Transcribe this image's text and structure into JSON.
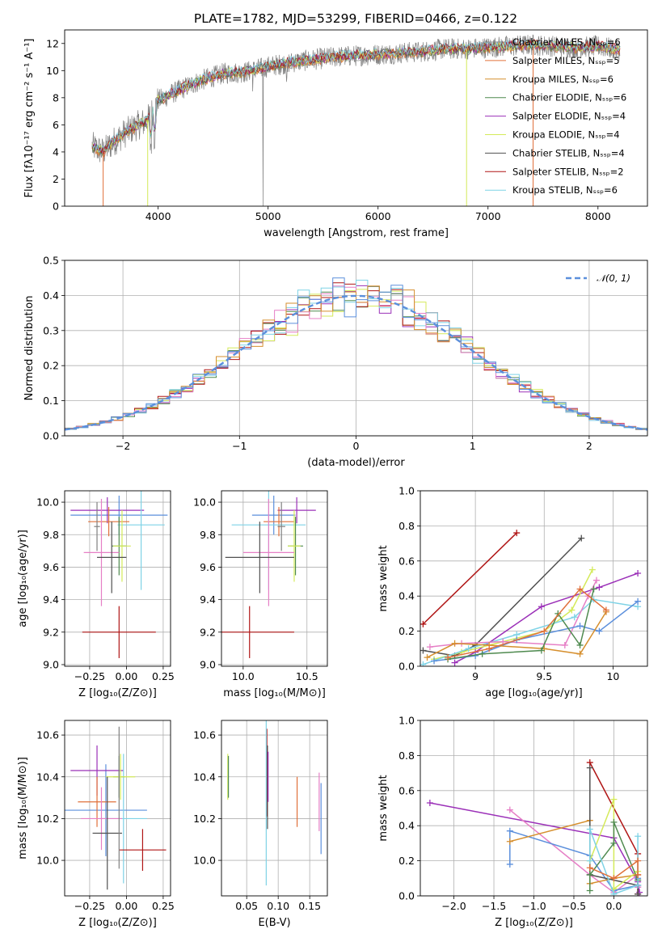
{
  "figure_title": "PLATE=1782, MJD=53299, FIBERID=0466, z=0.122",
  "colors": {
    "chabrier_miles": "#808080",
    "salpeter_miles": "#e0703a",
    "kroupa_miles": "#d68f2e",
    "chabrier_elodie": "#4f8a4f",
    "salpeter_elodie": "#9b30b8",
    "kroupa_elodie": "#d4ea5a",
    "chabrier_stelib": "#505050",
    "salpeter_stelib": "#b01515",
    "kroupa_stelib": "#7fd3e6",
    "blue_model": "#5b8fdc",
    "pink_model": "#e67fc6"
  },
  "chart_data": [
    {
      "id": "spectrum",
      "type": "line",
      "xlabel": "wavelength [Angstrom, rest frame]",
      "ylabel": "Flux [fλ10⁻¹⁷ erg cm⁻² s⁻¹ A⁻¹]",
      "xlim": [
        3150,
        8450
      ],
      "ylim": [
        0,
        13
      ],
      "xticks": [
        4000,
        5000,
        6000,
        7000,
        8000
      ],
      "yticks": [
        0,
        2,
        4,
        6,
        8,
        10,
        12
      ],
      "legend_position": "upper right",
      "legend": [
        "Chabrier MILES, Nₛₛₚ=6",
        "Salpeter MILES, Nₛₛₚ=5",
        "Kroupa MILES, Nₛₛₚ=6",
        "Chabrier ELODIE, Nₛₛₚ=6",
        "Salpeter ELODIE, Nₛₛₚ=4",
        "Kroupa ELODIE, Nₛₛₚ=4",
        "Chabrier STELIB, Nₛₛₚ=4",
        "Salpeter STELIB, Nₛₛₚ=2",
        "Kroupa STELIB, Nₛₛₚ=6"
      ],
      "continuum_x": [
        3400,
        3500,
        3600,
        3700,
        3800,
        3900,
        4000,
        4200,
        4400,
        4600,
        4800,
        5000,
        5200,
        5400,
        5600,
        5800,
        6000,
        6200,
        6400,
        6600,
        6800,
        7000,
        7200,
        7400,
        7600,
        7800,
        8000,
        8200
      ],
      "continuum_y": [
        4.4,
        4.0,
        4.8,
        5.4,
        5.9,
        6.3,
        7.8,
        8.6,
        9.3,
        9.8,
        9.9,
        10.3,
        10.6,
        10.8,
        11.0,
        11.1,
        11.2,
        11.3,
        11.4,
        11.6,
        11.6,
        11.7,
        11.8,
        11.9,
        11.8,
        11.7,
        11.8,
        11.5
      ]
    },
    {
      "id": "residuals",
      "type": "histogram",
      "xlabel": "(data-model)/error",
      "ylabel": "Normed distribution",
      "xlim": [
        -2.5,
        2.5
      ],
      "ylim": [
        0,
        0.5
      ],
      "xticks": [
        -2,
        -1,
        0,
        1,
        2
      ],
      "xtick_labels": [
        "−2",
        "−1",
        "0",
        "1",
        "2"
      ],
      "yticks": [
        0.0,
        0.1,
        0.2,
        0.3,
        0.4,
        0.5
      ],
      "legend": [
        "𝒩(0, 1)"
      ],
      "reference_curve": "gaussian mean 0 sigma 1",
      "bin_width": 0.1
    },
    {
      "id": "z_age",
      "type": "errorbar",
      "xlabel": "Z [log₁₀(Z/Z⊙)]",
      "ylabel": "age  [log₁₀(age/yr)]",
      "xlim": [
        -0.42,
        0.3
      ],
      "ylim": [
        8.99,
        10.07
      ],
      "xticks": [
        -0.25,
        0.0,
        0.25
      ],
      "xtick_labels": [
        "−0.25",
        "0.00",
        "0.25"
      ],
      "yticks": [
        9.0,
        9.2,
        9.4,
        9.6,
        9.8,
        10.0
      ],
      "points": [
        {
          "series": "blue",
          "x": -0.05,
          "xerr": 0.33,
          "y": 9.92,
          "yerr": 0.12
        },
        {
          "series": "purple",
          "x": -0.13,
          "xerr": 0.25,
          "y": 9.95,
          "yerr": 0.08
        },
        {
          "series": "orange",
          "x": -0.12,
          "xerr": 0.14,
          "y": 9.88,
          "yerr": 0.09
        },
        {
          "series": "cyan",
          "x": 0.1,
          "xerr": 0.16,
          "y": 9.86,
          "yerr": 0.4
        },
        {
          "series": "green",
          "x": -0.05,
          "xerr": 0.05,
          "y": 9.73,
          "yerr": 0.18
        },
        {
          "series": "lime",
          "x": -0.03,
          "xerr": 0.06,
          "y": 9.73,
          "yerr": 0.22
        },
        {
          "series": "pink",
          "x": -0.17,
          "xerr": 0.12,
          "y": 9.69,
          "yerr": 0.33
        },
        {
          "series": "darkgray",
          "x": -0.1,
          "xerr": 0.1,
          "y": 9.66,
          "yerr": 0.22
        },
        {
          "series": "red",
          "x": -0.05,
          "xerr": 0.25,
          "y": 9.2,
          "yerr": 0.16
        },
        {
          "series": "gray",
          "x": -0.2,
          "xerr": 0.02,
          "y": 9.85,
          "yerr": 0.15
        }
      ]
    },
    {
      "id": "mass_age",
      "type": "errorbar",
      "xlabel": "mass [log₁₀(M/M⊙)]",
      "ylabel": "",
      "xlim": [
        9.83,
        10.66
      ],
      "ylim": [
        8.99,
        10.07
      ],
      "xticks": [
        10.0,
        10.5
      ],
      "xtick_labels": [
        "10.0",
        "10.5"
      ],
      "yticks": [
        9.0,
        9.2,
        9.4,
        9.6,
        9.8,
        10.0
      ],
      "points": [
        {
          "series": "blue",
          "x": 10.24,
          "xerr": 0.17,
          "y": 9.92,
          "yerr": 0.12
        },
        {
          "series": "purple",
          "x": 10.42,
          "xerr": 0.15,
          "y": 9.95,
          "yerr": 0.08
        },
        {
          "series": "orange",
          "x": 10.28,
          "xerr": 0.12,
          "y": 9.88,
          "yerr": 0.09
        },
        {
          "series": "cyan",
          "x": 10.2,
          "xerr": 0.29,
          "y": 9.86,
          "yerr": 0.4
        },
        {
          "series": "green",
          "x": 10.41,
          "xerr": 0.06,
          "y": 9.73,
          "yerr": 0.18
        },
        {
          "series": "lime",
          "x": 10.4,
          "xerr": 0.05,
          "y": 9.73,
          "yerr": 0.22
        },
        {
          "series": "pink",
          "x": 10.2,
          "xerr": 0.2,
          "y": 9.69,
          "yerr": 0.33
        },
        {
          "series": "darkgray",
          "x": 10.13,
          "xerr": 0.27,
          "y": 9.66,
          "yerr": 0.22
        },
        {
          "series": "red",
          "x": 10.05,
          "xerr": 0.35,
          "y": 9.2,
          "yerr": 0.16
        },
        {
          "series": "gray",
          "x": 10.3,
          "xerr": 0.03,
          "y": 9.85,
          "yerr": 0.15
        }
      ]
    },
    {
      "id": "age_weight",
      "type": "line",
      "xlabel": "age  [log₁₀(age/yr)]",
      "ylabel": "mass weight",
      "xlim": [
        8.6,
        10.25
      ],
      "ylim": [
        0,
        1.0
      ],
      "xticks": [
        9.0,
        9.5,
        10.0
      ],
      "yticks": [
        0.0,
        0.2,
        0.4,
        0.6,
        0.8,
        1.0
      ],
      "series": [
        {
          "color": "salpeter_stelib",
          "x": [
            8.62,
            9.3
          ],
          "y": [
            0.24,
            0.76
          ]
        },
        {
          "color": "chabrier_stelib",
          "x": [
            8.62,
            8.85,
            9.0,
            9.77
          ],
          "y": [
            0.09,
            0.06,
            0.12,
            0.73
          ]
        },
        {
          "color": "salpeter_elodie",
          "x": [
            8.85,
            9.0,
            9.48,
            9.9,
            10.18
          ],
          "y": [
            0.02,
            0.08,
            0.34,
            0.45,
            0.53
          ]
        },
        {
          "color": "kroupa_elodie",
          "x": [
            8.7,
            8.9,
            9.2,
            9.5,
            9.7,
            9.85
          ],
          "y": [
            0.04,
            0.08,
            0.14,
            0.2,
            0.32,
            0.55
          ]
        },
        {
          "color": "kroupa_stelib",
          "x": [
            8.62,
            8.95,
            9.3,
            9.72,
            9.86,
            10.18
          ],
          "y": [
            0.01,
            0.1,
            0.18,
            0.28,
            0.38,
            0.34
          ]
        },
        {
          "color": "pink_model",
          "x": [
            8.67,
            8.9,
            9.2,
            9.65,
            9.82,
            9.88
          ],
          "y": [
            0.11,
            0.13,
            0.14,
            0.12,
            0.4,
            0.49
          ]
        },
        {
          "color": "blue_model",
          "x": [
            8.7,
            9.0,
            9.3,
            9.76,
            9.9,
            10.18
          ],
          "y": [
            0.03,
            0.06,
            0.15,
            0.23,
            0.2,
            0.37
          ]
        },
        {
          "color": "kroupa_miles",
          "x": [
            8.65,
            8.85,
            9.1,
            9.5,
            9.76,
            9.95
          ],
          "y": [
            0.05,
            0.13,
            0.12,
            0.1,
            0.07,
            0.31
          ]
        },
        {
          "color": "chabrier_elodie",
          "x": [
            8.8,
            9.05,
            9.48,
            9.6,
            9.76,
            9.86
          ],
          "y": [
            0.04,
            0.07,
            0.09,
            0.3,
            0.12,
            0.44
          ]
        },
        {
          "color": "salpeter_miles",
          "x": [
            8.8,
            9.1,
            9.5,
            9.76,
            9.95
          ],
          "y": [
            0.05,
            0.1,
            0.2,
            0.44,
            0.32
          ]
        }
      ]
    },
    {
      "id": "z_mass",
      "type": "errorbar",
      "xlabel": "Z [log₁₀(Z/Z⊙)]",
      "ylabel": "mass [log₁₀(M/M⊙)]",
      "xlim": [
        -0.42,
        0.3
      ],
      "ylim": [
        9.83,
        10.67
      ],
      "xticks": [
        -0.25,
        0.0,
        0.25
      ],
      "xtick_labels": [
        "−0.25",
        "0.00",
        "0.25"
      ],
      "yticks": [
        10.0,
        10.2,
        10.4,
        10.6
      ],
      "points": [
        {
          "series": "blue",
          "x": -0.14,
          "xerr": 0.28,
          "y": 10.24,
          "yerr": 0.22
        },
        {
          "series": "purple",
          "x": -0.2,
          "xerr": 0.18,
          "y": 10.43,
          "yerr": 0.12
        },
        {
          "series": "orange",
          "x": -0.2,
          "xerr": 0.13,
          "y": 10.28,
          "yerr": 0.12
        },
        {
          "series": "cyan",
          "x": -0.02,
          "xerr": 0.16,
          "y": 10.2,
          "yerr": 0.31
        },
        {
          "series": "green",
          "x": -0.05,
          "xerr": 0.04,
          "y": 10.4,
          "yerr": 0.1
        },
        {
          "series": "lime",
          "x": -0.04,
          "xerr": 0.1,
          "y": 10.4,
          "yerr": 0.11
        },
        {
          "series": "pink",
          "x": -0.17,
          "xerr": 0.14,
          "y": 10.2,
          "yerr": 0.15
        },
        {
          "series": "darkgray",
          "x": -0.13,
          "xerr": 0.1,
          "y": 10.13,
          "yerr": 0.27
        },
        {
          "series": "red",
          "x": 0.11,
          "xerr": 0.16,
          "y": 10.05,
          "yerr": 0.1
        },
        {
          "series": "gray",
          "x": -0.05,
          "xerr": 0.0,
          "y": 10.3,
          "yerr": 0.34
        }
      ]
    },
    {
      "id": "ebv_mass",
      "type": "errorbar",
      "xlabel": "E(B-V)",
      "ylabel": "",
      "xlim": [
        0.01,
        0.178
      ],
      "ylim": [
        9.83,
        10.67
      ],
      "xticks": [
        0.05,
        0.1,
        0.15
      ],
      "xtick_labels": [
        "0.05",
        "0.10",
        "0.15"
      ],
      "yticks": [
        10.0,
        10.2,
        10.4,
        10.6
      ],
      "points": [
        {
          "series": "lime",
          "x": 0.02,
          "y": 10.4,
          "yerr": 0.11
        },
        {
          "series": "green",
          "x": 0.021,
          "y": 10.4,
          "yerr": 0.1
        },
        {
          "series": "red",
          "x": 0.082,
          "y": 10.42,
          "yerr": 0.21
        },
        {
          "series": "darkgray",
          "x": 0.083,
          "y": 10.35,
          "yerr": 0.2
        },
        {
          "series": "cyan",
          "x": 0.081,
          "y": 10.3,
          "yerr": 0.42
        },
        {
          "series": "purple",
          "x": 0.084,
          "y": 10.4,
          "yerr": 0.12
        },
        {
          "series": "orange",
          "x": 0.13,
          "y": 10.28,
          "yerr": 0.12
        },
        {
          "series": "pink",
          "x": 0.165,
          "y": 10.28,
          "yerr": 0.14
        },
        {
          "series": "blue",
          "x": 0.168,
          "y": 10.2,
          "yerr": 0.17
        }
      ]
    },
    {
      "id": "z_weight",
      "type": "line",
      "xlabel": "Z [log₁₀(Z/Z⊙)]",
      "ylabel": "mass weight",
      "xlim": [
        -2.42,
        0.42
      ],
      "ylim": [
        0,
        1.0
      ],
      "xticks": [
        -2.0,
        -1.5,
        -1.0,
        -0.5,
        0.0
      ],
      "xtick_labels": [
        "−2.0",
        "−1.5",
        "−1.0",
        "−0.5",
        "0.0"
      ],
      "yticks": [
        0.0,
        0.2,
        0.4,
        0.6,
        0.8,
        1.0
      ],
      "series": [
        {
          "color": "salpeter_elodie",
          "x": [
            -2.3,
            0.0,
            0.3,
            0.32,
            0.3
          ],
          "y": [
            0.53,
            0.33,
            0.08,
            0.02,
            0.05
          ]
        },
        {
          "color": "pink_model",
          "x": [
            -1.3,
            -0.3,
            0.0,
            0.3,
            0.3
          ],
          "y": [
            0.49,
            0.12,
            0.02,
            0.12,
            0.05
          ]
        },
        {
          "color": "blue_model",
          "x": [
            -1.3,
            -1.3,
            -0.3,
            0.0,
            0.3,
            0.3
          ],
          "y": [
            0.18,
            0.37,
            0.23,
            0.03,
            0.06,
            0.1
          ]
        },
        {
          "color": "kroupa_miles",
          "x": [
            -1.3,
            -0.3,
            -0.3,
            0.0,
            0.3
          ],
          "y": [
            0.31,
            0.43,
            0.07,
            0.1,
            0.12
          ]
        },
        {
          "color": "salpeter_stelib",
          "x": [
            -0.3,
            0.3,
            0.3
          ],
          "y": [
            0.76,
            0.24,
            0.01
          ]
        },
        {
          "color": "chabrier_stelib",
          "x": [
            -0.3,
            -0.3,
            0.3,
            0.3,
            0.3
          ],
          "y": [
            0.73,
            0.12,
            0.06,
            0.09,
            0.01
          ]
        },
        {
          "color": "kroupa_elodie",
          "x": [
            -0.3,
            0.0,
            0.0,
            0.3
          ],
          "y": [
            0.2,
            0.55,
            0.04,
            0.14
          ]
        },
        {
          "color": "chabrier_elodie",
          "x": [
            -0.3,
            -0.3,
            0.0,
            0.0,
            0.3
          ],
          "y": [
            0.03,
            0.12,
            0.3,
            0.42,
            0.09
          ]
        },
        {
          "color": "kroupa_stelib",
          "x": [
            -0.3,
            -0.3,
            0.0,
            0.3,
            0.3
          ],
          "y": [
            0.2,
            0.38,
            0.01,
            0.06,
            0.34
          ]
        },
        {
          "color": "salpeter_miles",
          "x": [
            -0.3,
            0.0,
            0.3,
            0.3
          ],
          "y": [
            0.16,
            0.1,
            0.2,
            0.12
          ]
        }
      ]
    }
  ]
}
